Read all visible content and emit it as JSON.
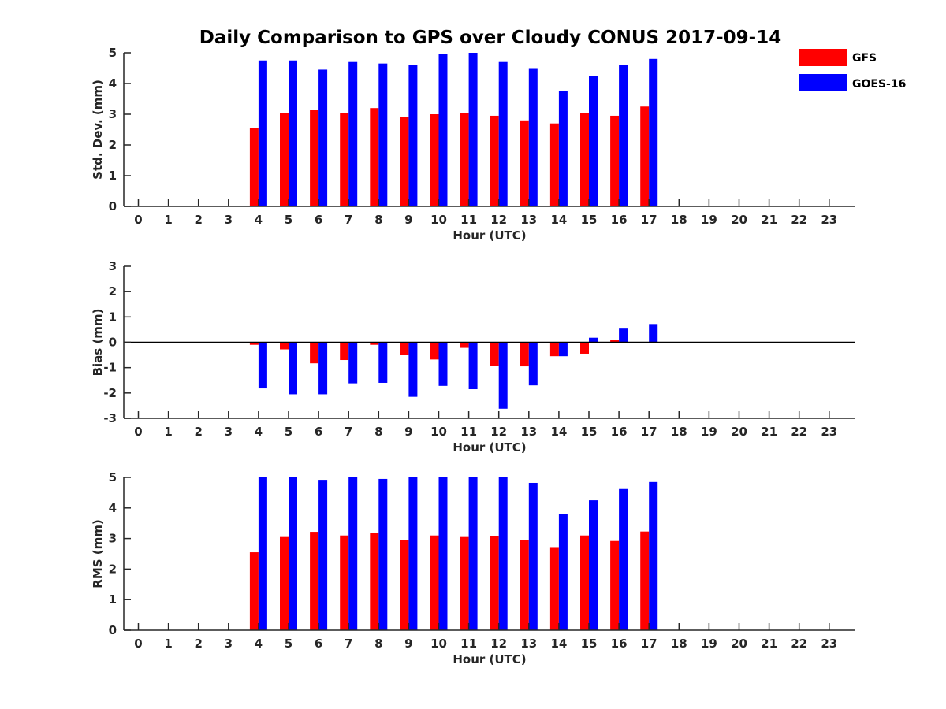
{
  "title": "Daily Comparison to GPS over Cloudy CONUS 2017-09-14",
  "colors": {
    "GFS": "#ff0000",
    "GOES-16": "#0000ff",
    "axis": "#262626"
  },
  "legend": {
    "placement": "top-right",
    "entries": [
      "GFS",
      "GOES-16"
    ]
  },
  "chart_data": [
    {
      "type": "bar",
      "title": "Daily Comparison to GPS over Cloudy CONUS 2017-09-14",
      "xlabel": "Hour (UTC)",
      "ylabel": "Std. Dev. (mm)",
      "ylim": [
        0,
        5
      ],
      "yticks": [
        "0",
        "1",
        "2",
        "3",
        "4",
        "5"
      ],
      "categories": [
        "0",
        "1",
        "2",
        "3",
        "4",
        "5",
        "6",
        "7",
        "8",
        "9",
        "10",
        "11",
        "12",
        "13",
        "14",
        "15",
        "16",
        "17",
        "18",
        "19",
        "20",
        "21",
        "22",
        "23"
      ],
      "series": [
        {
          "name": "GFS",
          "values": [
            null,
            null,
            null,
            null,
            2.55,
            3.05,
            3.15,
            3.05,
            3.2,
            2.9,
            3.0,
            3.05,
            2.95,
            2.8,
            2.7,
            3.05,
            2.95,
            3.25,
            null,
            null,
            null,
            null,
            null,
            null
          ]
        },
        {
          "name": "GOES-16",
          "values": [
            null,
            null,
            null,
            null,
            4.75,
            4.75,
            4.45,
            4.7,
            4.65,
            4.6,
            4.95,
            5.0,
            4.7,
            4.5,
            3.75,
            4.25,
            4.6,
            4.8,
            null,
            null,
            null,
            null,
            null,
            null
          ]
        }
      ],
      "grid": false
    },
    {
      "type": "bar",
      "xlabel": "Hour (UTC)",
      "ylabel": "Bias (mm)",
      "ylim": [
        -3,
        3
      ],
      "yticks": [
        "-3",
        "-2",
        "-1",
        "0",
        "1",
        "2",
        "3"
      ],
      "categories": [
        "0",
        "1",
        "2",
        "3",
        "4",
        "5",
        "6",
        "7",
        "8",
        "9",
        "10",
        "11",
        "12",
        "13",
        "14",
        "15",
        "16",
        "17",
        "18",
        "19",
        "20",
        "21",
        "22",
        "23"
      ],
      "series": [
        {
          "name": "GFS",
          "values": [
            null,
            null,
            null,
            null,
            -0.1,
            -0.28,
            -0.83,
            -0.7,
            -0.1,
            -0.5,
            -0.68,
            -0.22,
            -0.93,
            -0.95,
            -0.55,
            -0.45,
            0.08,
            null,
            null,
            null,
            null,
            null,
            null,
            null
          ]
        },
        {
          "name": "GOES-16",
          "values": [
            null,
            null,
            null,
            null,
            -1.82,
            -2.05,
            -2.05,
            -1.62,
            -1.6,
            -2.15,
            -1.72,
            -1.85,
            -2.62,
            -1.7,
            -0.55,
            0.18,
            0.57,
            0.72,
            null,
            null,
            null,
            null,
            null,
            null
          ]
        }
      ],
      "grid": false
    },
    {
      "type": "bar",
      "xlabel": "Hour (UTC)",
      "ylabel": "RMS (mm)",
      "ylim": [
        0,
        5
      ],
      "yticks": [
        "0",
        "1",
        "2",
        "3",
        "4",
        "5"
      ],
      "categories": [
        "0",
        "1",
        "2",
        "3",
        "4",
        "5",
        "6",
        "7",
        "8",
        "9",
        "10",
        "11",
        "12",
        "13",
        "14",
        "15",
        "16",
        "17",
        "18",
        "19",
        "20",
        "21",
        "22",
        "23"
      ],
      "series": [
        {
          "name": "GFS",
          "values": [
            null,
            null,
            null,
            null,
            2.55,
            3.05,
            3.22,
            3.1,
            3.18,
            2.95,
            3.1,
            3.05,
            3.08,
            2.95,
            2.72,
            3.1,
            2.92,
            3.23,
            null,
            null,
            null,
            null,
            null,
            null
          ]
        },
        {
          "name": "GOES-16",
          "values": [
            null,
            null,
            null,
            null,
            5.0,
            5.0,
            4.92,
            5.0,
            4.95,
            5.0,
            5.0,
            5.0,
            5.0,
            4.82,
            3.8,
            4.25,
            4.62,
            4.85,
            null,
            null,
            null,
            null,
            null,
            null
          ]
        }
      ],
      "grid": false
    }
  ]
}
